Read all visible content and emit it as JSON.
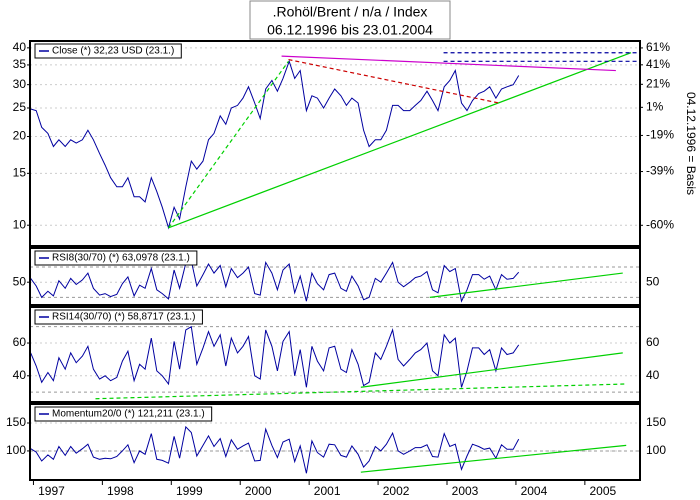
{
  "chart_data": {
    "title": ".Rohöl/Brent / n/a / Index",
    "subtitle": "06.12.1996 bis 23.01.2004",
    "x": [
      1996.96,
      1997.04,
      1997.12,
      1997.21,
      1997.29,
      1997.37,
      1997.46,
      1997.54,
      1997.62,
      1997.71,
      1997.79,
      1997.87,
      1997.96,
      1998.04,
      1998.12,
      1998.21,
      1998.29,
      1998.37,
      1998.46,
      1998.54,
      1998.62,
      1998.71,
      1998.79,
      1998.87,
      1998.96,
      1999.04,
      1999.12,
      1999.21,
      1999.29,
      1999.37,
      1999.46,
      1999.54,
      1999.62,
      1999.71,
      1999.79,
      1999.87,
      1999.96,
      2000.04,
      2000.12,
      2000.21,
      2000.29,
      2000.37,
      2000.46,
      2000.54,
      2000.62,
      2000.71,
      2000.79,
      2000.87,
      2000.96,
      2001.04,
      2001.12,
      2001.21,
      2001.29,
      2001.37,
      2001.46,
      2001.54,
      2001.62,
      2001.71,
      2001.79,
      2001.87,
      2001.96,
      2002.04,
      2002.12,
      2002.21,
      2002.29,
      2002.37,
      2002.46,
      2002.54,
      2002.62,
      2002.71,
      2002.79,
      2002.87,
      2002.96,
      2003.04,
      2003.12,
      2003.21,
      2003.29,
      2003.37,
      2003.46,
      2003.54,
      2003.62,
      2003.71,
      2003.79,
      2003.87,
      2003.96,
      2004.04
    ],
    "xlim": [
      1996.95,
      2005.8
    ],
    "xticks": [
      1997,
      1998,
      1999,
      2000,
      2001,
      2002,
      2003,
      2004,
      2005
    ],
    "panels": [
      {
        "type": "line",
        "log_scale": true,
        "grid": true,
        "y2label": "04.12.1996 = Basis",
        "ylim": [
          8.5,
          42.2
        ],
        "yticks": [
          10,
          15,
          20,
          25,
          30,
          35,
          40
        ],
        "y2lim": [
          -66,
          70
        ],
        "y2ticks": [
          {
            "value": 61,
            "label": "61%"
          },
          {
            "value": 41,
            "label": "41%"
          },
          {
            "value": 21,
            "label": "21%"
          },
          {
            "value": 1,
            "label": "1%"
          },
          {
            "value": -19,
            "label": "-19%"
          },
          {
            "value": -39,
            "label": "-39%"
          },
          {
            "value": -60,
            "label": "-60%"
          }
        ],
        "series": [
          {
            "name": "Close (*) 32,23 USD (23.1.)",
            "color": "#0000a0",
            "values": [
              24.8,
              24.5,
              21.5,
              20.5,
              18.5,
              19.5,
              18.5,
              19.5,
              19.0,
              19.5,
              21.0,
              19.5,
              17.5,
              16.0,
              14.5,
              13.5,
              13.5,
              14.5,
              12.5,
              12.5,
              12.0,
              14.5,
              13.0,
              11.5,
              9.8,
              11.5,
              10.5,
              13.5,
              16.5,
              15.5,
              16.5,
              19.5,
              20.5,
              23.5,
              22.0,
              25.0,
              25.5,
              27.0,
              29.5,
              26.0,
              23.0,
              29.0,
              31.0,
              28.5,
              31.5,
              36.0,
              31.5,
              33.5,
              24.5,
              27.5,
              27.0,
              25.0,
              27.0,
              29.0,
              27.5,
              25.5,
              27.0,
              26.0,
              21.0,
              18.5,
              19.5,
              19.5,
              21.0,
              25.5,
              25.5,
              24.5,
              24.5,
              25.5,
              26.5,
              28.5,
              26.5,
              24.5,
              29.5,
              31.0,
              33.5,
              26.0,
              24.5,
              26.5,
              28.0,
              28.5,
              29.5,
              27.0,
              29.0,
              29.5,
              30.0,
              32.23
            ]
          }
        ],
        "trend_lines": [
          {
            "color": "#00d000",
            "dashed": false,
            "x": [
              1998.96,
              2005.67
            ],
            "y": [
              9.8,
              38.5
            ]
          },
          {
            "color": "#00d000",
            "dashed": true,
            "x": [
              1998.96,
              2000.7
            ],
            "y": [
              9.8,
              36.0
            ]
          },
          {
            "color": "#cc0000",
            "dashed": true,
            "x": [
              2000.7,
              2003.75
            ],
            "y": [
              36.5,
              26.0
            ]
          },
          {
            "color": "#cc00cc",
            "dashed": false,
            "x": [
              2000.6,
              2005.45
            ],
            "y": [
              37.5,
              33.5
            ]
          },
          {
            "color": "#0000a0",
            "dashed": true,
            "x": [
              2002.95,
              2005.8
            ],
            "y": [
              38.5,
              38.5
            ]
          },
          {
            "color": "#0000a0",
            "dashed": true,
            "x": [
              2002.95,
              2005.8
            ],
            "y": [
              36.0,
              36.0
            ]
          }
        ]
      },
      {
        "type": "line",
        "grid": true,
        "ylim": [
          20,
          95
        ],
        "yticks": [
          50
        ],
        "reference_lines": [
          30,
          70
        ],
        "series": [
          {
            "name": "RSI8(30/70) (*) 63,0978 (23.1.)",
            "color": "#0000a0",
            "values": [
              55,
              45,
              30,
              38,
              32,
              52,
              42,
              55,
              47,
              53,
              62,
              42,
              33,
              35,
              31,
              34,
              48,
              57,
              32,
              46,
              42,
              68,
              40,
              35,
              28,
              66,
              42,
              75,
              78,
              45,
              60,
              74,
              62,
              72,
              44,
              68,
              56,
              62,
              70,
              35,
              33,
              76,
              62,
              40,
              66,
              74,
              36,
              58,
              25,
              62,
              48,
              40,
              60,
              62,
              42,
              38,
              58,
              45,
              27,
              30,
              55,
              50,
              62,
              76,
              50,
              44,
              50,
              56,
              58,
              64,
              40,
              36,
              72,
              64,
              68,
              25,
              40,
              60,
              60,
              54,
              58,
              40,
              60,
              54,
              55,
              63.0978
            ]
          }
        ],
        "trend_lines": [
          {
            "color": "#00d000",
            "dashed": false,
            "x": [
              2002.75,
              2005.55
            ],
            "y": [
              30,
              62
            ]
          }
        ]
      },
      {
        "type": "line",
        "grid": true,
        "ylim": [
          24,
          82
        ],
        "yticks": [
          40,
          60
        ],
        "reference_lines": [
          30,
          70
        ],
        "series": [
          {
            "name": "RSI14(30/70) (*) 58,8717 (23.1.)",
            "color": "#0000a0",
            "values": [
              54,
              46,
              36,
              42,
              37,
              51,
              44,
              54,
              48,
              52,
              58,
              44,
              38,
              40,
              37,
              39,
              49,
              55,
              37,
              47,
              44,
              63,
              43,
              40,
              35,
              61,
              44,
              68,
              70,
              47,
              57,
              67,
              58,
              65,
              46,
              63,
              54,
              58,
              64,
              40,
              38,
              68,
              58,
              43,
              61,
              67,
              40,
              56,
              33,
              58,
              49,
              43,
              57,
              58,
              44,
              42,
              56,
              47,
              34,
              36,
              54,
              50,
              58,
              68,
              50,
              46,
              50,
              54,
              56,
              60,
              43,
              40,
              65,
              60,
              63,
              33,
              43,
              57,
              57,
              53,
              56,
              43,
              57,
              53,
              54,
              58.8717
            ]
          }
        ],
        "trend_lines": [
          {
            "color": "#00d000",
            "dashed": false,
            "x": [
              2001.75,
              2005.55
            ],
            "y": [
              33,
              54
            ]
          },
          {
            "color": "#00d000",
            "dashed": true,
            "x": [
              1997.9,
              2005.6
            ],
            "y": [
              26,
              35
            ]
          }
        ]
      },
      {
        "type": "line",
        "grid": true,
        "ylim": [
          48,
          184
        ],
        "yticks": [
          100,
          150
        ],
        "reference_lines": [
          100
        ],
        "series": [
          {
            "name": "Momentum20/0 (*) 121,211 (23.1.)",
            "color": "#0000a0",
            "values": [
              104,
              98,
              82,
              93,
              85,
              108,
              92,
              108,
              96,
              104,
              112,
              89,
              85,
              87,
              86,
              90,
              100,
              111,
              79,
              100,
              94,
              131,
              85,
              83,
              78,
              126,
              87,
              143,
              133,
              91,
              110,
              127,
              108,
              122,
              90,
              120,
              103,
              109,
              114,
              82,
              83,
              139,
              110,
              88,
              116,
              121,
              81,
              109,
              60,
              118,
              97,
              89,
              112,
              111,
              92,
              89,
              109,
              94,
              71,
              82,
              108,
              100,
              112,
              132,
              100,
              94,
              100,
              106,
              106,
              111,
              90,
              89,
              131,
              108,
              112,
              67,
              91,
              112,
              108,
              103,
              105,
              87,
              111,
              103,
              103,
              121.211
            ]
          }
        ],
        "trend_lines": [
          {
            "color": "#00d000",
            "dashed": false,
            "x": [
              2001.75,
              2005.6
            ],
            "y": [
              62,
              110
            ]
          }
        ]
      }
    ]
  }
}
